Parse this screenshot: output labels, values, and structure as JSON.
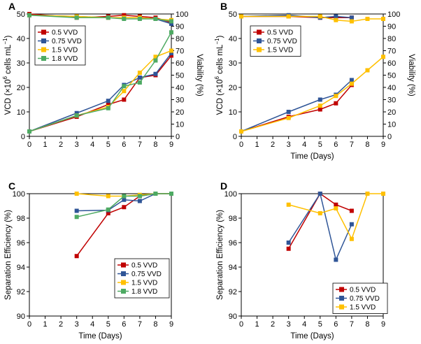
{
  "colors": {
    "s05": "#C00000",
    "s075": "#2F5597",
    "s15": "#FFC000",
    "s18": "#4EAA63"
  },
  "chart_data": [
    {
      "id": "A",
      "panel_label": "A",
      "type": "line",
      "xlim": [
        0,
        9
      ],
      "ylim": [
        0,
        50
      ],
      "y2lim": [
        0,
        100
      ],
      "x_ticks": [
        "0",
        "1",
        "2",
        "3",
        "4",
        "5",
        "6",
        "7",
        "8",
        "9"
      ],
      "y_ticks": [
        "0",
        "10",
        "20",
        "30",
        "40",
        "50"
      ],
      "y2_ticks": [
        "0",
        "10",
        "20",
        "30",
        "40",
        "50",
        "60",
        "70",
        "80",
        "90",
        "100"
      ],
      "ylabel_parts": [
        "VCD (×10",
        "6",
        " cells mL",
        "−1",
        ")"
      ],
      "y2label": "Viability (%)",
      "legend_position": "top-left",
      "series": [
        {
          "name": "0.5 VVD",
          "color_key": "s05",
          "x": [
            0,
            3,
            5,
            6,
            7,
            8,
            9
          ],
          "values": [
            2,
            8,
            13,
            15,
            24,
            25,
            33
          ],
          "viability": [
            100,
            97,
            98,
            99,
            98,
            97,
            93
          ]
        },
        {
          "name": "0.75 VVD",
          "color_key": "s075",
          "x": [
            0,
            3,
            5,
            6,
            7,
            8,
            9
          ],
          "values": [
            2,
            9.5,
            14.5,
            21,
            24,
            25.5,
            34
          ],
          "viability": [
            99,
            98,
            97,
            97,
            97,
            96,
            92
          ]
        },
        {
          "name": "1.5 VVD",
          "color_key": "s15",
          "x": [
            0,
            3,
            5,
            6,
            7,
            8,
            9
          ],
          "values": [
            2,
            8.5,
            12,
            18.5,
            26,
            32.5,
            35
          ],
          "viability": [
            99,
            98,
            97,
            97,
            97,
            96,
            95
          ]
        },
        {
          "name": "1.8 VVD",
          "color_key": "s18",
          "x": [
            0,
            3,
            5,
            6,
            7,
            8,
            9
          ],
          "values": [
            2,
            8.5,
            11.5,
            20.5,
            22,
            31,
            42.5
          ],
          "viability": [
            99,
            97,
            97,
            96,
            96,
            96,
            94
          ]
        }
      ]
    },
    {
      "id": "B",
      "panel_label": "B",
      "type": "line",
      "xlim": [
        0,
        9
      ],
      "ylim": [
        0,
        50
      ],
      "y2lim": [
        0,
        100
      ],
      "x_ticks": [
        "0",
        "1",
        "2",
        "3",
        "4",
        "5",
        "6",
        "7",
        "8",
        "9"
      ],
      "y_ticks": [
        "0",
        "10",
        "20",
        "30",
        "40",
        "50"
      ],
      "y2_ticks": [
        "0",
        "10",
        "20",
        "30",
        "40",
        "50",
        "60",
        "70",
        "80",
        "90",
        "100"
      ],
      "ylabel_parts": [
        "VCD (×10",
        "6",
        " cells mL",
        "−1",
        ")"
      ],
      "y2label": "Viability (%)",
      "xlabel": "Time (Days)",
      "legend_position": "top-left",
      "series": [
        {
          "name": "0.5 VVD",
          "color_key": "s05",
          "x": [
            0,
            3,
            5,
            6,
            7
          ],
          "values": [
            2,
            8,
            11,
            13.5,
            21
          ],
          "viability": [
            98,
            98,
            97,
            97,
            97
          ]
        },
        {
          "name": "0.75 VVD",
          "color_key": "s075",
          "x": [
            0,
            3,
            5,
            6,
            7
          ],
          "values": [
            2,
            10,
            15,
            17,
            23
          ],
          "viability": [
            98,
            99,
            97,
            98,
            97
          ]
        },
        {
          "name": "1.5 VVD",
          "color_key": "s15",
          "x": [
            0,
            3,
            5,
            6,
            7,
            8,
            9
          ],
          "values": [
            2,
            7.5,
            12.5,
            16.5,
            21.5,
            27,
            32.5
          ],
          "viability": [
            98,
            98,
            98,
            95,
            94,
            96,
            96
          ]
        }
      ]
    },
    {
      "id": "C",
      "panel_label": "C",
      "type": "line",
      "xlim": [
        0,
        9
      ],
      "ylim": [
        90,
        100
      ],
      "x_ticks": [
        "0",
        "1",
        "2",
        "3",
        "4",
        "5",
        "6",
        "7",
        "8",
        "9"
      ],
      "y_ticks": [
        "90",
        "92",
        "94",
        "96",
        "98",
        "100"
      ],
      "ylabel": "Separation Efficiency (%)",
      "xlabel": "Time (Days)",
      "legend_position": "bottom-right",
      "series": [
        {
          "name": "0.5 VVD",
          "color_key": "s05",
          "x": [
            3,
            5,
            6,
            7,
            8,
            9
          ],
          "values": [
            94.9,
            98.4,
            98.9,
            99.8,
            100,
            100
          ]
        },
        {
          "name": "0.75 VVD",
          "color_key": "s075",
          "x": [
            3,
            5,
            6,
            7,
            8,
            9
          ],
          "values": [
            98.6,
            98.65,
            99.5,
            99.4,
            100,
            100
          ]
        },
        {
          "name": "1.5 VVD",
          "color_key": "s15",
          "x": [
            3,
            5,
            6,
            7,
            8,
            9
          ],
          "values": [
            100,
            99.8,
            99.8,
            99.9,
            100,
            100
          ]
        },
        {
          "name": "1.8 VVD",
          "color_key": "s18",
          "x": [
            3,
            5,
            6,
            7,
            8,
            9
          ],
          "values": [
            98.1,
            98.7,
            99.8,
            99.8,
            100,
            100
          ]
        }
      ]
    },
    {
      "id": "D",
      "panel_label": "D",
      "type": "line",
      "xlim": [
        0,
        9
      ],
      "ylim": [
        90,
        100
      ],
      "x_ticks": [
        "0",
        "1",
        "2",
        "3",
        "4",
        "5",
        "6",
        "7",
        "8",
        "9"
      ],
      "y_ticks": [
        "90",
        "92",
        "94",
        "96",
        "98",
        "100"
      ],
      "ylabel": "Separation Efficiency (%)",
      "xlabel": "Time (Days)",
      "legend_position": "bottom-right",
      "series": [
        {
          "name": "0.5 VVD",
          "color_key": "s05",
          "x": [
            3,
            5,
            6,
            7
          ],
          "values": [
            95.5,
            100,
            99.1,
            98.6
          ]
        },
        {
          "name": "0.75 VVD",
          "color_key": "s075",
          "x": [
            3,
            5,
            6,
            7
          ],
          "values": [
            96,
            100,
            94.6,
            97.5
          ]
        },
        {
          "name": "1.5 VVD",
          "color_key": "s15",
          "x": [
            3,
            5,
            6,
            7,
            8,
            9
          ],
          "values": [
            99.1,
            98.4,
            98.8,
            96.3,
            100,
            100
          ]
        }
      ]
    }
  ]
}
